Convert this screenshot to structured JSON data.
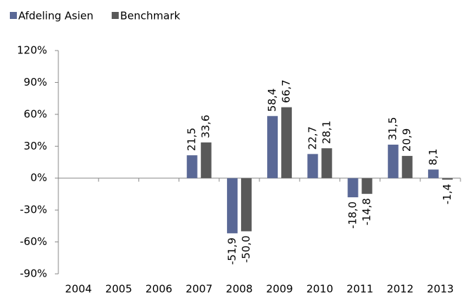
{
  "chart_data": {
    "type": "bar",
    "categories": [
      "2004",
      "2005",
      "2006",
      "2007",
      "2008",
      "2009",
      "2010",
      "2011",
      "2012",
      "2013"
    ],
    "series": [
      {
        "name": "Afdeling Asien",
        "color": "#5a6896",
        "values": [
          null,
          null,
          null,
          21.5,
          -51.9,
          58.4,
          22.7,
          -18.0,
          31.5,
          8.1
        ],
        "value_labels": [
          null,
          null,
          null,
          "21,5",
          "-51,9",
          "58,4",
          "22,7",
          "-18,0",
          "31,5",
          "8,1"
        ]
      },
      {
        "name": "Benchmark",
        "color": "#595959",
        "values": [
          null,
          null,
          null,
          33.6,
          -50.0,
          66.7,
          28.1,
          -14.8,
          20.9,
          -1.4
        ],
        "value_labels": [
          null,
          null,
          null,
          "33,6",
          "-50,0",
          "66,7",
          "28,1",
          "-14,8",
          "20,9",
          "-1,4"
        ]
      }
    ],
    "ylim": [
      -90,
      120
    ],
    "yticks": [
      {
        "value": -90,
        "label": "-90%"
      },
      {
        "value": -60,
        "label": "-60%"
      },
      {
        "value": -30,
        "label": "-30%"
      },
      {
        "value": 0,
        "label": "0%"
      },
      {
        "value": 30,
        "label": "30%"
      },
      {
        "value": 60,
        "label": "60%"
      },
      {
        "value": 90,
        "label": "90%"
      },
      {
        "value": 120,
        "label": "120%"
      }
    ]
  }
}
